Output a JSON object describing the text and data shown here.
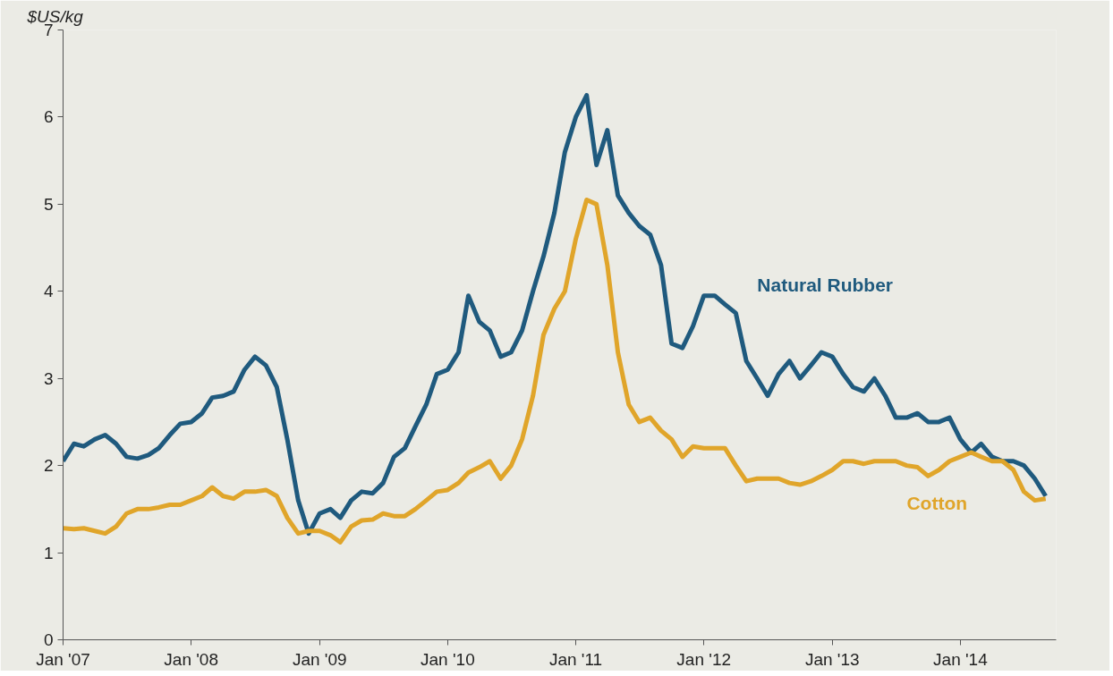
{
  "chart_data": {
    "type": "line",
    "ylabel": "$US/kg",
    "x": [
      "2007-01",
      "2007-02",
      "2007-03",
      "2007-04",
      "2007-05",
      "2007-06",
      "2007-07",
      "2007-08",
      "2007-09",
      "2007-10",
      "2007-11",
      "2007-12",
      "2008-01",
      "2008-02",
      "2008-03",
      "2008-04",
      "2008-05",
      "2008-06",
      "2008-07",
      "2008-08",
      "2008-09",
      "2008-10",
      "2008-11",
      "2008-12",
      "2009-01",
      "2009-02",
      "2009-03",
      "2009-04",
      "2009-05",
      "2009-06",
      "2009-07",
      "2009-08",
      "2009-09",
      "2009-10",
      "2009-11",
      "2009-12",
      "2010-01",
      "2010-02",
      "2010-03",
      "2010-04",
      "2010-05",
      "2010-06",
      "2010-07",
      "2010-08",
      "2010-09",
      "2010-10",
      "2010-11",
      "2010-12",
      "2011-01",
      "2011-02",
      "2011-03",
      "2011-04",
      "2011-05",
      "2011-06",
      "2011-07",
      "2011-08",
      "2011-09",
      "2011-10",
      "2011-11",
      "2011-12",
      "2012-01",
      "2012-02",
      "2012-03",
      "2012-04",
      "2012-05",
      "2012-06",
      "2012-07",
      "2012-08",
      "2012-09",
      "2012-10",
      "2012-11",
      "2012-12",
      "2013-01",
      "2013-02",
      "2013-03",
      "2013-04",
      "2013-05",
      "2013-06",
      "2013-07",
      "2013-08",
      "2013-09",
      "2013-10",
      "2013-11",
      "2013-12",
      "2014-01",
      "2014-02",
      "2014-03",
      "2014-04",
      "2014-05",
      "2014-06",
      "2014-07",
      "2014-08",
      "2014-09"
    ],
    "series": [
      {
        "name": "Natural Rubber",
        "color": "#1f5a7e",
        "values": [
          2.05,
          2.25,
          2.22,
          2.3,
          2.35,
          2.25,
          2.1,
          2.08,
          2.12,
          2.2,
          2.35,
          2.48,
          2.5,
          2.6,
          2.78,
          2.8,
          2.85,
          3.1,
          3.25,
          3.15,
          2.9,
          2.3,
          1.6,
          1.22,
          1.45,
          1.5,
          1.4,
          1.6,
          1.7,
          1.68,
          1.8,
          2.1,
          2.2,
          2.45,
          2.7,
          3.05,
          3.1,
          3.3,
          3.95,
          3.65,
          3.55,
          3.25,
          3.3,
          3.55,
          4.0,
          4.4,
          4.9,
          5.6,
          6.0,
          6.25,
          5.45,
          5.85,
          5.1,
          4.9,
          4.75,
          4.65,
          4.3,
          3.4,
          3.35,
          3.6,
          3.95,
          3.95,
          3.85,
          3.75,
          3.2,
          3.0,
          2.8,
          3.05,
          3.2,
          3.0,
          3.15,
          3.3,
          3.25,
          3.05,
          2.9,
          2.85,
          3.0,
          2.8,
          2.55,
          2.55,
          2.6,
          2.5,
          2.5,
          2.55,
          2.3,
          2.15,
          2.25,
          2.1,
          2.05,
          2.05,
          2.0,
          1.85,
          1.65
        ]
      },
      {
        "name": "Cotton",
        "color": "#e0a52a",
        "values": [
          1.28,
          1.27,
          1.28,
          1.25,
          1.22,
          1.3,
          1.45,
          1.5,
          1.5,
          1.52,
          1.55,
          1.55,
          1.6,
          1.65,
          1.75,
          1.65,
          1.62,
          1.7,
          1.7,
          1.72,
          1.65,
          1.4,
          1.22,
          1.25,
          1.25,
          1.2,
          1.12,
          1.3,
          1.37,
          1.38,
          1.45,
          1.42,
          1.42,
          1.5,
          1.6,
          1.7,
          1.72,
          1.8,
          1.92,
          1.98,
          2.05,
          1.85,
          2.0,
          2.3,
          2.8,
          3.5,
          3.8,
          4.0,
          4.6,
          5.05,
          5.0,
          4.3,
          3.3,
          2.7,
          2.5,
          2.55,
          2.4,
          2.3,
          2.1,
          2.22,
          2.2,
          2.2,
          2.2,
          2.0,
          1.82,
          1.85,
          1.85,
          1.85,
          1.8,
          1.78,
          1.82,
          1.88,
          1.95,
          2.05,
          2.05,
          2.02,
          2.05,
          2.05,
          2.05,
          2.0,
          1.98,
          1.88,
          1.95,
          2.05,
          2.1,
          2.15,
          2.1,
          2.05,
          2.05,
          1.95,
          1.7,
          1.6,
          1.62
        ]
      }
    ],
    "xlim": [
      "2007-01",
      "2014-10"
    ],
    "xticks": [
      {
        "value": "2007-01",
        "label": "Jan '07"
      },
      {
        "value": "2008-01",
        "label": "Jan '08"
      },
      {
        "value": "2009-01",
        "label": "Jan '09"
      },
      {
        "value": "2010-01",
        "label": "Jan '10"
      },
      {
        "value": "2011-01",
        "label": "Jan '11"
      },
      {
        "value": "2012-01",
        "label": "Jan '12"
      },
      {
        "value": "2013-01",
        "label": "Jan '13"
      },
      {
        "value": "2014-01",
        "label": "Jan '14"
      }
    ],
    "ylim": [
      0,
      7
    ],
    "yticks": [
      0,
      1,
      2,
      3,
      4,
      5,
      6,
      7
    ],
    "grid": false,
    "legend": false,
    "line_style": "solid",
    "marker": "none"
  }
}
